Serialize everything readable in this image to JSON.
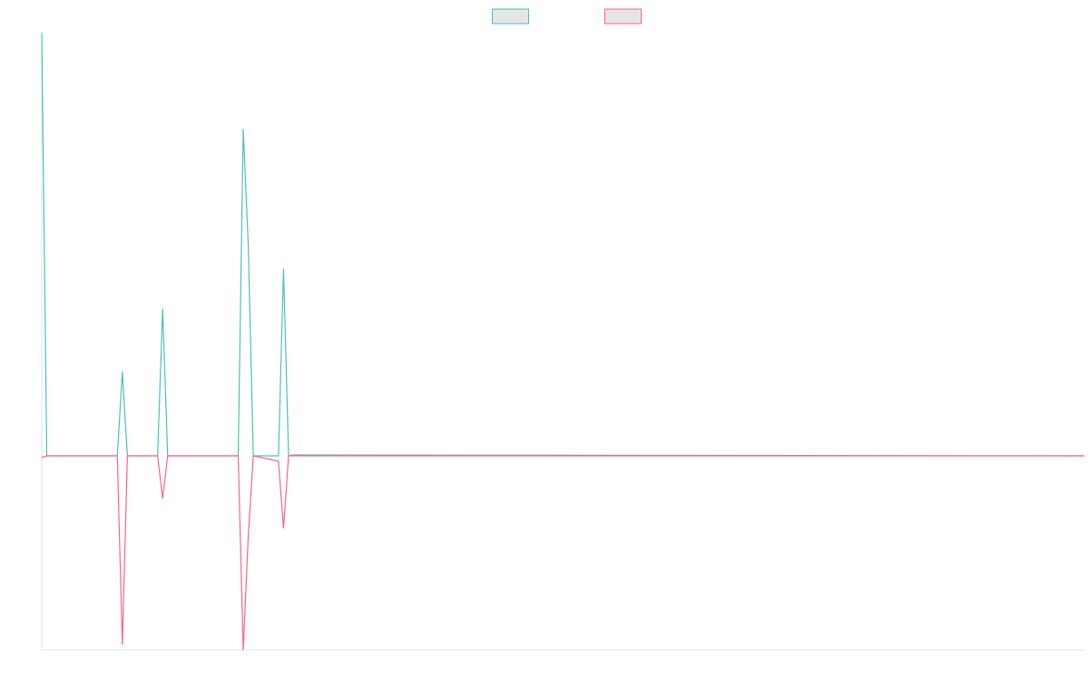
{
  "chart_data": {
    "type": "line",
    "x": [
      0,
      1,
      15,
      16,
      17,
      23,
      24,
      25,
      39,
      40,
      41,
      42,
      47,
      48,
      49,
      50,
      207
    ],
    "xlim": [
      0,
      207
    ],
    "ylim": [
      -214,
      466
    ],
    "legend": "top",
    "series": [
      {
        "color": "#4bc0c0",
        "values": [
          466,
          0,
          0,
          93,
          0,
          0,
          162,
          0,
          0,
          360,
          232,
          0,
          0,
          206,
          0,
          1,
          0
        ]
      },
      {
        "color": "#ff6384",
        "values": [
          -2,
          0,
          0,
          -208,
          0,
          0,
          -47,
          0,
          0,
          -214,
          -88,
          0,
          -6,
          -80,
          0,
          0,
          0
        ]
      }
    ]
  }
}
